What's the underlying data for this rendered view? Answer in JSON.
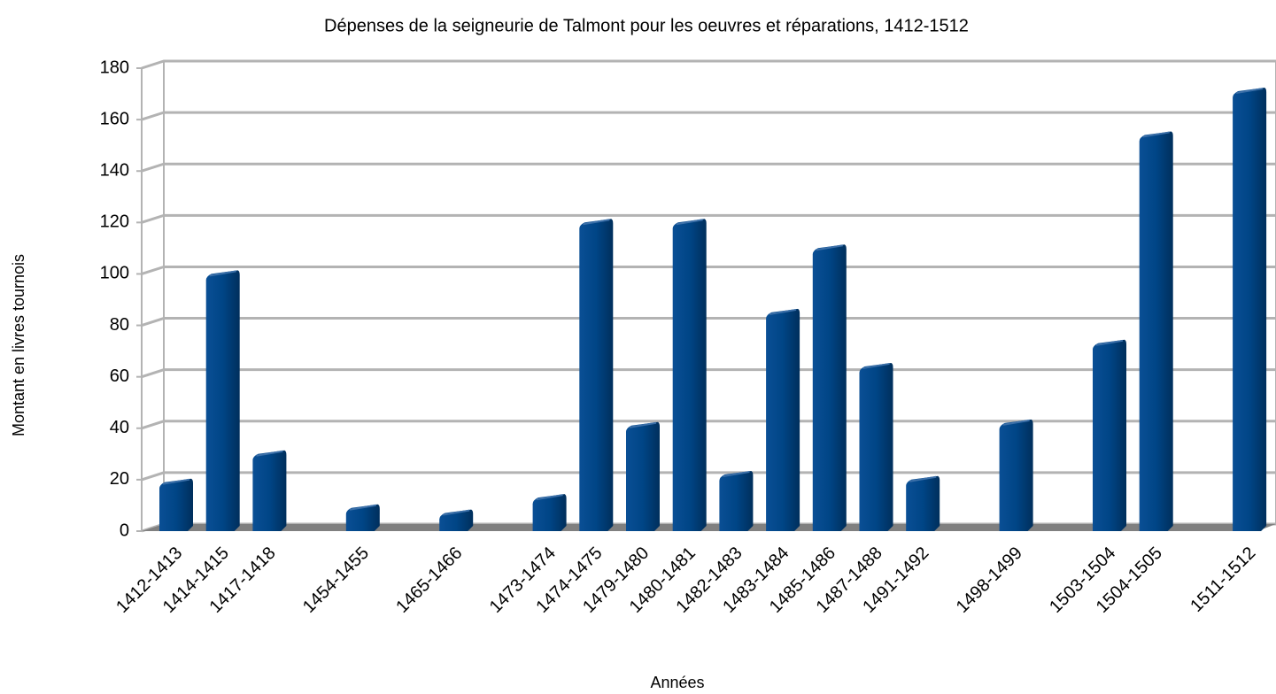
{
  "chart_data": {
    "type": "bar",
    "title": "Dépenses de la seigneurie de Talmont pour les oeuvres et réparations, 1412-1512",
    "x_label": "Années",
    "y_label": "Montant en livres tournois",
    "categories": [
      "1412-1413",
      "1414-1415",
      "1417-1418",
      null,
      "1454-1455",
      null,
      "1465-1466",
      null,
      "1473-1474",
      "1474-1475",
      "1479-1480",
      "1480-1481",
      "1482-1483",
      "1483-1484",
      "1485-1486",
      "1487-1488",
      "1491-1492",
      null,
      "1498-1499",
      null,
      "1503-1504",
      "1504-1505",
      null,
      "1511-1512"
    ],
    "values": [
      18,
      99,
      29,
      null,
      8,
      null,
      6,
      null,
      12,
      119,
      40,
      119,
      21,
      84,
      109,
      63,
      19,
      null,
      41,
      null,
      72,
      153,
      null,
      170
    ],
    "color": "#004586",
    "ylim": [
      0,
      180
    ],
    "yticks": [
      0,
      20,
      40,
      60,
      80,
      100,
      120,
      140,
      160,
      180
    ],
    "grid": true
  }
}
